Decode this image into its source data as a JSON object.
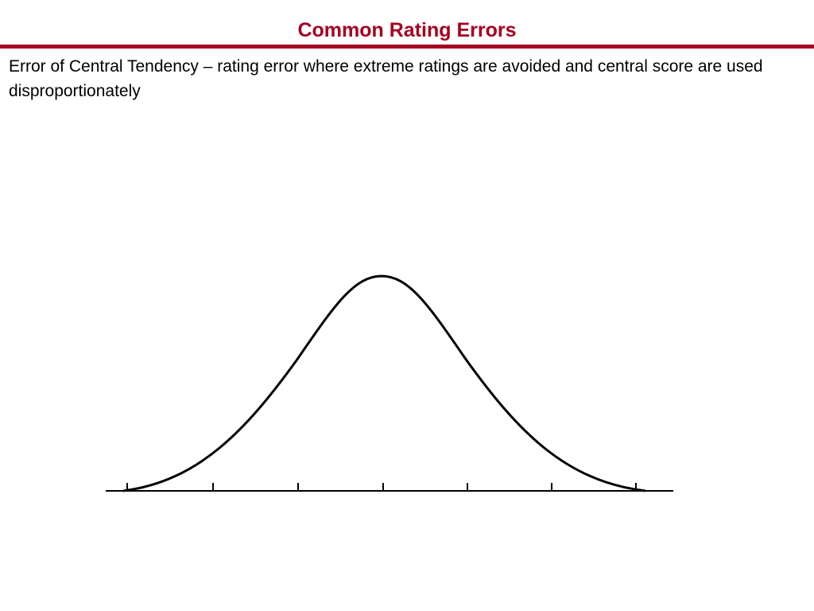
{
  "header": {
    "title": "Common Rating Errors"
  },
  "body": {
    "text": "Error of Central Tendency – rating error where extreme ratings are avoided and central score are used disproportionately"
  }
}
